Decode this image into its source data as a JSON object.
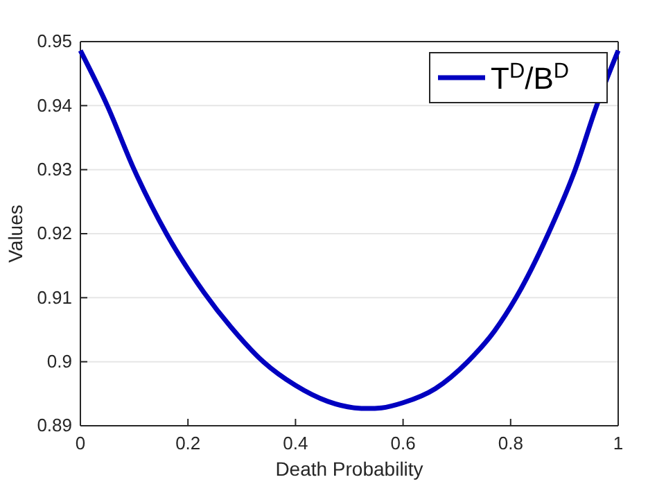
{
  "chart_data": {
    "type": "line",
    "xlabel": "Death Probability",
    "ylabel": "Values",
    "x": [
      0,
      0.05,
      0.1,
      0.16,
      0.23,
      0.28,
      0.34,
      0.4,
      0.46,
      0.51,
      0.535,
      0.56,
      0.6,
      0.66,
      0.72,
      0.77,
      0.81,
      0.87,
      0.92,
      0.96,
      1
    ],
    "series": [
      {
        "name": "T$^{D}$/B$^{D}$",
        "color": "#0000c0",
        "values": [
          0.9486,
          0.94,
          0.93,
          0.92,
          0.9108,
          0.9054,
          0.9,
          0.8963,
          0.8938,
          0.8928,
          0.8927,
          0.8928,
          0.8936,
          0.8958,
          0.9,
          0.9048,
          0.91,
          0.92,
          0.93,
          0.94,
          0.9486
        ]
      }
    ],
    "xlim": [
      0,
      1
    ],
    "xticks": [
      0,
      0.2,
      0.4,
      0.6,
      0.8,
      1
    ],
    "ylim": [
      0.89,
      0.95
    ],
    "yticks": [
      0.89,
      0.9,
      0.91,
      0.92,
      0.93,
      0.94,
      0.95
    ],
    "grid": "y",
    "legend": "top right",
    "line_style": "solid",
    "marker": "none"
  }
}
